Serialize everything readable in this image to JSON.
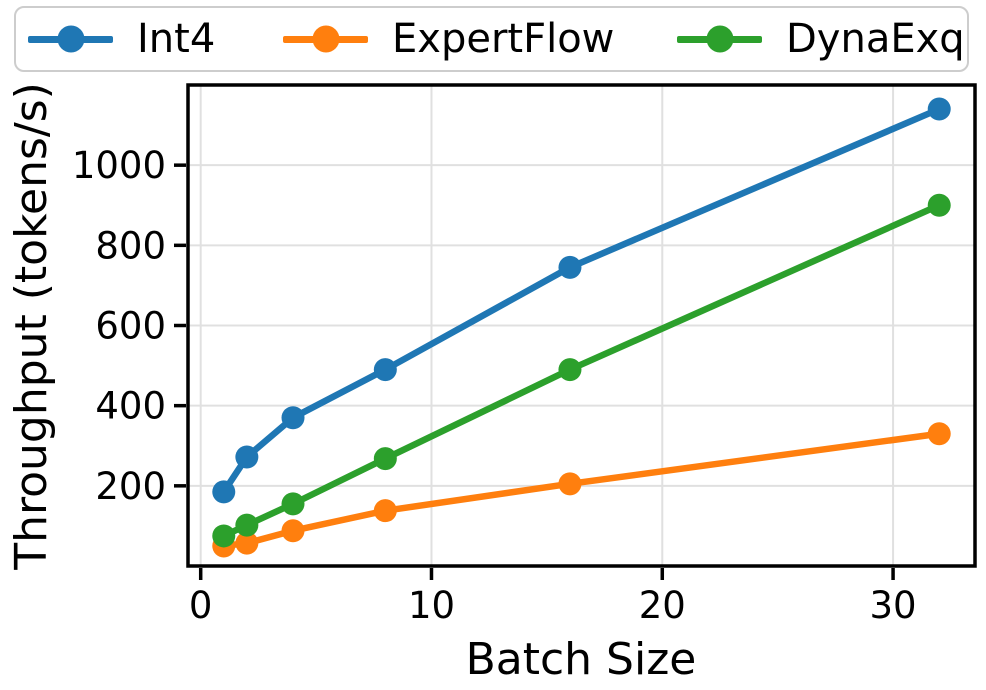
{
  "chart_data": {
    "type": "line",
    "title": "",
    "xlabel": "Batch Size",
    "ylabel": "Throughput (tokens/s)",
    "x": [
      1,
      2,
      4,
      8,
      16,
      32
    ],
    "series": [
      {
        "name": "Int4",
        "color": "#1f77b4",
        "values": [
          185,
          272,
          370,
          490,
          745,
          1140
        ]
      },
      {
        "name": "ExpertFlow",
        "color": "#ff7f0e",
        "values": [
          50,
          57,
          88,
          138,
          205,
          330
        ]
      },
      {
        "name": "DynaExq",
        "color": "#2ca02c",
        "values": [
          75,
          102,
          155,
          268,
          490,
          900
        ]
      }
    ],
    "xticks": [
      0,
      10,
      20,
      30
    ],
    "yticks": [
      200,
      400,
      600,
      800,
      1000
    ],
    "xlim": [
      -0.55,
      33.55
    ],
    "ylim": [
      0,
      1200
    ],
    "grid": true,
    "grid_color": "#e0e0e0",
    "spine_color": "#000000",
    "legend_position": "top",
    "legend_order": [
      "Int4",
      "ExpertFlow",
      "DynaExq"
    ]
  }
}
